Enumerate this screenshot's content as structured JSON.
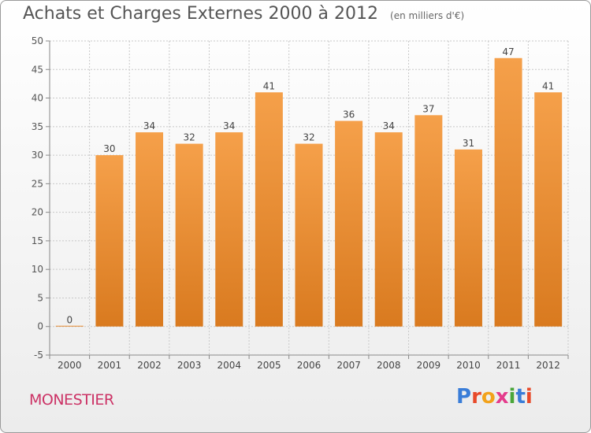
{
  "header": {
    "title": "Achats et Charges Externes 2000 à 2012",
    "subtitle": "(en milliers d'€)"
  },
  "footer": {
    "commune": "MONESTIER",
    "brand_letters": [
      {
        "ch": "P",
        "color": "#3a7dd8"
      },
      {
        "ch": "r",
        "color": "#e84a2a"
      },
      {
        "ch": "o",
        "color": "#f2a21b"
      },
      {
        "ch": "x",
        "color": "#e43c8c"
      },
      {
        "ch": "i",
        "color": "#4aa63a"
      },
      {
        "ch": "t",
        "color": "#3a7dd8"
      },
      {
        "ch": "i",
        "color": "#e84a2a"
      }
    ]
  },
  "chart_data": {
    "type": "bar",
    "categories": [
      "2000",
      "2001",
      "2002",
      "2003",
      "2004",
      "2005",
      "2006",
      "2007",
      "2008",
      "2009",
      "2010",
      "2011",
      "2012"
    ],
    "values": [
      0,
      30,
      34,
      32,
      34,
      41,
      32,
      36,
      34,
      37,
      31,
      47,
      41
    ],
    "data_labels": [
      "0",
      "30",
      "34",
      "32",
      "34",
      "41",
      "32",
      "36",
      "34",
      "37",
      "31",
      "47",
      "41"
    ],
    "ylim": [
      -5,
      50
    ],
    "yticks": [
      -5,
      0,
      5,
      10,
      15,
      20,
      25,
      30,
      35,
      40,
      45,
      50
    ],
    "grid": true,
    "bar_color": "#f5a04a",
    "bar_color_dark": "#d97a1f"
  }
}
